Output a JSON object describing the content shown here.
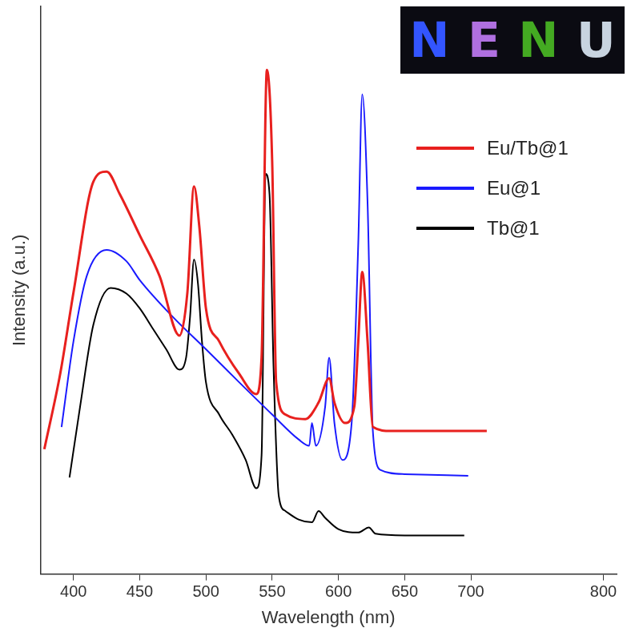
{
  "chart_data": {
    "type": "line",
    "x_label": "Wavelength (nm)",
    "y_label": "Intensity (a.u.)",
    "xlim": [
      375,
      810
    ],
    "xticks": [
      400,
      450,
      500,
      550,
      600,
      650,
      700,
      800
    ],
    "ylim": [
      0,
      100
    ],
    "tick_labels": "x",
    "grid": false,
    "legend": "top right",
    "annotations": [
      {
        "text": "N",
        "color": "#3355ff"
      },
      {
        "text": "E",
        "color": "#b070e0"
      },
      {
        "text": "N",
        "color": "#44aa22"
      },
      {
        "text": "U",
        "color": "#c8d4e0"
      }
    ],
    "series": [
      {
        "name": "Eu/Tb@1",
        "color": "#e8201e",
        "x": [
          378,
          390,
          400,
          415,
          425,
          435,
          450,
          465,
          480,
          486,
          491,
          495,
          500,
          510,
          525,
          538,
          542,
          546,
          550,
          553,
          560,
          575,
          585,
          593,
          597,
          605,
          612,
          615,
          618,
          622,
          626,
          640,
          680,
          712
        ],
        "values": [
          22.0,
          35.3,
          49.6,
          69.1,
          70.9,
          66.9,
          59.7,
          52.5,
          42.0,
          49.6,
          68.3,
          61.2,
          46.8,
          41.0,
          35.3,
          31.7,
          38.1,
          88.8,
          72.7,
          33.8,
          28.1,
          27.3,
          30.2,
          34.5,
          30.2,
          26.6,
          29.5,
          41.0,
          53.2,
          41.0,
          25.9,
          25.2,
          25.2,
          25.2
        ]
      },
      {
        "name": "Eu@1",
        "color": "#1a1aff",
        "x": [
          391,
          400,
          410,
          425,
          440,
          450,
          475,
          500,
          525,
          550,
          570,
          578,
          580,
          583,
          590,
          593,
          597,
          603,
          610,
          615,
          618,
          622,
          626,
          632,
          650,
          698
        ],
        "values": [
          25.9,
          41.0,
          52.5,
          57.1,
          55.1,
          51.8,
          45.3,
          39.6,
          33.8,
          28.1,
          23.7,
          22.6,
          26.6,
          22.6,
          29.5,
          38.1,
          26.6,
          20.1,
          26.6,
          58.3,
          84.5,
          65.5,
          25.2,
          18.3,
          17.6,
          17.3
        ]
      },
      {
        "name": "Tb@1",
        "color": "#000000",
        "x": [
          397,
          405,
          415,
          428,
          440,
          450,
          460,
          470,
          480,
          485,
          488,
          491,
          494,
          497,
          500,
          510,
          520,
          530,
          538,
          542,
          545,
          548,
          551,
          555,
          560,
          570,
          580,
          585,
          590,
          600,
          615,
          623,
          628,
          650,
          695
        ],
        "values": [
          17.0,
          29.5,
          43.9,
          50.4,
          49.4,
          46.8,
          43.2,
          39.6,
          36.0,
          38.1,
          45.3,
          55.4,
          51.1,
          41.0,
          33.8,
          28.1,
          24.5,
          20.1,
          15.1,
          20.9,
          70.5,
          66.9,
          36.7,
          13.7,
          11.1,
          9.6,
          9.1,
          11.1,
          9.9,
          7.9,
          7.3,
          8.2,
          7.1,
          6.8,
          6.8
        ]
      }
    ]
  }
}
